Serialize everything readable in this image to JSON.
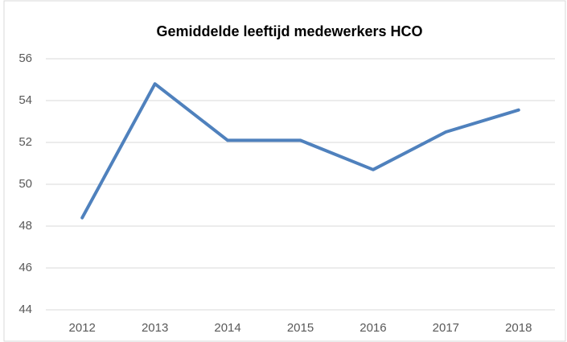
{
  "chart_data": {
    "type": "line",
    "title": "Gemiddelde leeftijd medewerkers HCO",
    "categories": [
      "2012",
      "2013",
      "2014",
      "2015",
      "2016",
      "2017",
      "2018"
    ],
    "series": [
      {
        "name": "Gemiddelde leeftijd",
        "color": "#4f81bd",
        "values": [
          48.4,
          54.8,
          52.1,
          52.1,
          50.7,
          52.5,
          53.55
        ]
      }
    ],
    "ylim": [
      44,
      56
    ],
    "yticks": [
      44,
      46,
      48,
      50,
      52,
      54,
      56
    ],
    "grid": true
  }
}
